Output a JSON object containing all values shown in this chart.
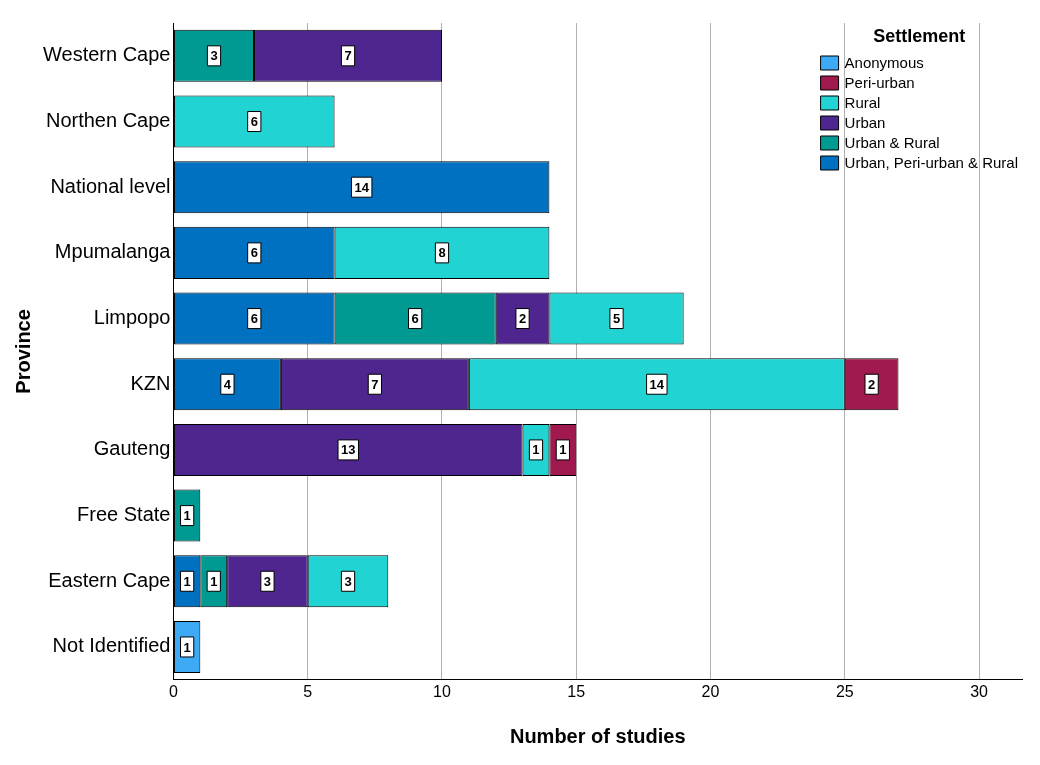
{
  "chart_data": {
    "type": "bar",
    "orientation": "horizontal",
    "stacked": true,
    "xlabel": "Number of studies",
    "ylabel": "Province",
    "legend_title": "Settlement",
    "legend": "top right",
    "grid": "x",
    "data_labels": true,
    "categories": [
      "Western Cape",
      "Northen Cape",
      "National level",
      "Mpumalanga",
      "Limpopo",
      "KZN",
      "Gauteng",
      "Free State",
      "Eastern Cape",
      "Not Identified"
    ],
    "xlim": [
      0,
      31.6
    ],
    "xticks": [
      0,
      5,
      10,
      15,
      20,
      25,
      30
    ],
    "series": [
      {
        "name": "Urban, Peri-urban & Rural",
        "color": "#0070c0",
        "values": [
          null,
          null,
          14,
          6,
          6,
          4,
          null,
          null,
          1,
          null
        ]
      },
      {
        "name": "Urban & Rural",
        "color": "#009a93",
        "values": [
          3,
          null,
          null,
          null,
          6,
          null,
          null,
          1,
          1,
          null
        ]
      },
      {
        "name": "Urban",
        "color": "#4f2590",
        "values": [
          7,
          null,
          null,
          null,
          2,
          7,
          13,
          null,
          3,
          null
        ]
      },
      {
        "name": "Rural",
        "color": "#22d3d3",
        "values": [
          null,
          6,
          null,
          8,
          5,
          14,
          1,
          null,
          3,
          null
        ]
      },
      {
        "name": "Peri-urban",
        "color": "#a0194f",
        "values": [
          null,
          null,
          null,
          null,
          null,
          2,
          1,
          null,
          null,
          null
        ]
      },
      {
        "name": "Anonymous",
        "color": "#3ea9f5",
        "values": [
          null,
          null,
          null,
          null,
          null,
          null,
          null,
          null,
          null,
          1
        ]
      }
    ]
  }
}
